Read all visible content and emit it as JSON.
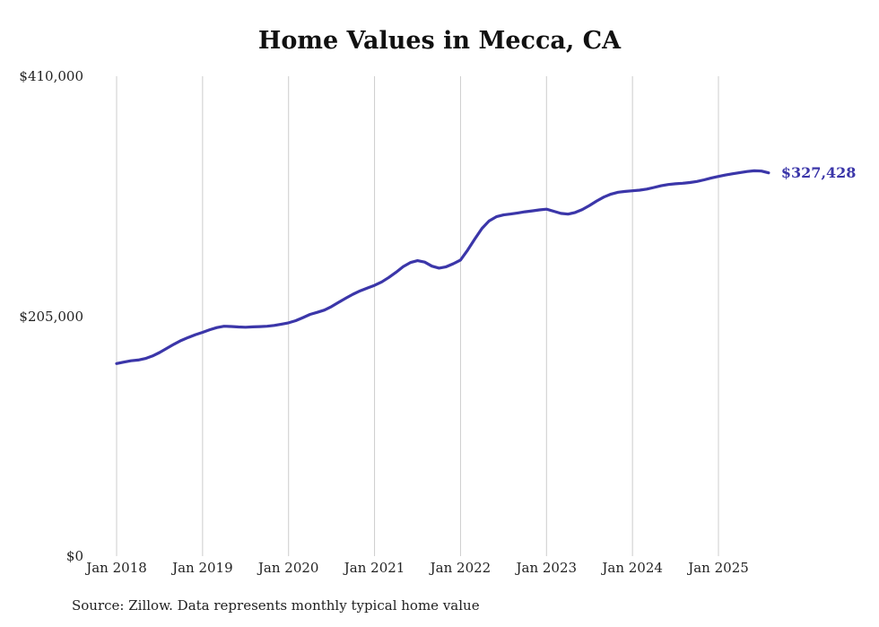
{
  "title": "Home Values in Mecca, CA",
  "source_note": "Source: Zillow. Data represents monthly typical home value",
  "colors": {
    "line": "#3b36a9",
    "gridline": "#cccccc",
    "text": "#222222",
    "title": "#111111"
  },
  "chart_data": {
    "type": "line",
    "title": "Home Values in Mecca, CA",
    "series_name": "Monthly typical home value",
    "unit": "USD",
    "x_interval": "month",
    "legend": "none",
    "grid": "vertical-at-year-ticks",
    "ylim": [
      0,
      410000
    ],
    "y_ticks": [
      {
        "label": "$0",
        "value": 0
      },
      {
        "label": "$205,000",
        "value": 205000
      },
      {
        "label": "$410,000",
        "value": 410000
      }
    ],
    "x_ticks": [
      "Jan 2018",
      "Jan 2019",
      "Jan 2020",
      "Jan 2021",
      "Jan 2022",
      "Jan 2023",
      "Jan 2024",
      "Jan 2025"
    ],
    "final_value": 327428,
    "final_value_label": "$327,428",
    "x": [
      "2018-01",
      "2018-02",
      "2018-03",
      "2018-04",
      "2018-05",
      "2018-06",
      "2018-07",
      "2018-08",
      "2018-09",
      "2018-10",
      "2018-11",
      "2018-12",
      "2019-01",
      "2019-02",
      "2019-03",
      "2019-04",
      "2019-05",
      "2019-06",
      "2019-07",
      "2019-08",
      "2019-09",
      "2019-10",
      "2019-11",
      "2019-12",
      "2020-01",
      "2020-02",
      "2020-03",
      "2020-04",
      "2020-05",
      "2020-06",
      "2020-07",
      "2020-08",
      "2020-09",
      "2020-10",
      "2020-11",
      "2020-12",
      "2021-01",
      "2021-02",
      "2021-03",
      "2021-04",
      "2021-05",
      "2021-06",
      "2021-07",
      "2021-08",
      "2021-09",
      "2021-10",
      "2021-11",
      "2021-12",
      "2022-01",
      "2022-02",
      "2022-03",
      "2022-04",
      "2022-05",
      "2022-06",
      "2022-07",
      "2022-08",
      "2022-09",
      "2022-10",
      "2022-11",
      "2022-12",
      "2023-01",
      "2023-02",
      "2023-03",
      "2023-04",
      "2023-05",
      "2023-06",
      "2023-07",
      "2023-08",
      "2023-09",
      "2023-10",
      "2023-11",
      "2023-12",
      "2024-01",
      "2024-02",
      "2024-03",
      "2024-04",
      "2024-05",
      "2024-06",
      "2024-07",
      "2024-08",
      "2024-09",
      "2024-10",
      "2024-11",
      "2024-12",
      "2025-01",
      "2025-02",
      "2025-03",
      "2025-04",
      "2025-05",
      "2025-06",
      "2025-07",
      "2025-08"
    ],
    "values": [
      164500,
      165800,
      166900,
      167500,
      168800,
      171000,
      174000,
      177500,
      181000,
      184200,
      186800,
      189200,
      191200,
      193400,
      195300,
      196400,
      196200,
      195800,
      195600,
      195900,
      196100,
      196400,
      197100,
      198200,
      199300,
      201200,
      203800,
      206500,
      208300,
      210200,
      213200,
      216900,
      220400,
      223800,
      226700,
      229100,
      231400,
      234300,
      238100,
      242500,
      247300,
      250800,
      252400,
      251200,
      247800,
      246100,
      247200,
      249800,
      253000,
      261500,
      271000,
      280000,
      286500,
      290000,
      291500,
      292300,
      293200,
      294200,
      295000,
      295800,
      296400,
      294700,
      292800,
      292200,
      293600,
      296100,
      299600,
      303400,
      306800,
      309300,
      310900,
      311600,
      312100,
      312700,
      313600,
      315000,
      316400,
      317500,
      318100,
      318600,
      319200,
      320100,
      321500,
      323100,
      324400,
      325600,
      326700,
      327700,
      328600,
      329200,
      329000,
      327428
    ]
  }
}
